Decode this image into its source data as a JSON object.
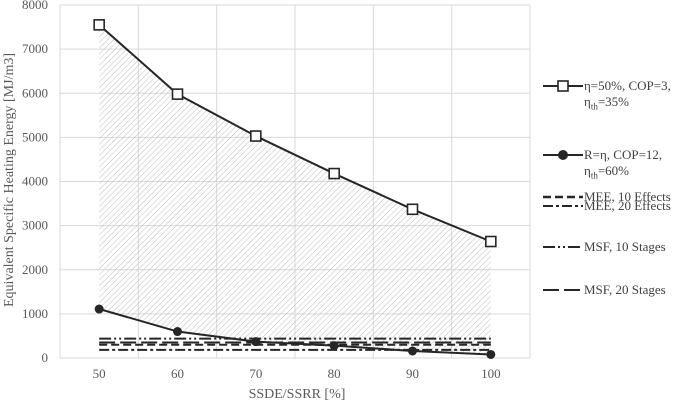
{
  "chart_data": {
    "type": "line",
    "title": "",
    "xlabel": "SSDE/SSRR [%]",
    "ylabel": "Equivalent Specific Heating Energy [MJ/m3]",
    "xlim": [
      45,
      105
    ],
    "ylim": [
      0,
      8000
    ],
    "x_ticks": [
      50,
      60,
      70,
      80,
      90,
      100
    ],
    "y_ticks": [
      0,
      1000,
      2000,
      3000,
      4000,
      5000,
      6000,
      7000,
      8000
    ],
    "grid": "both",
    "legend_position": "right",
    "shaded_region": "between the η=50% and R=η series",
    "x": [
      50,
      60,
      70,
      80,
      90,
      100
    ],
    "series": [
      {
        "name": "η=50%, COP=3, ηth=35%",
        "legend_main": "η=50%, COP=3,",
        "legend_sub": "th",
        "legend_line2_prefix": "η",
        "legend_line2_suffix": "=35%",
        "style": "solid-square",
        "values": [
          7550,
          5980,
          5030,
          4180,
          3370,
          2640
        ]
      },
      {
        "name": "R=η, COP=12, ηth=60%",
        "legend_main": "R=η, COP=12,",
        "legend_sub": "th",
        "legend_line2_prefix": "η",
        "legend_line2_suffix": "=60%",
        "style": "solid-circle",
        "values": [
          1110,
          600,
          370,
          280,
          160,
          80
        ]
      },
      {
        "name": "MEE, 10 Effects",
        "style": "dash",
        "values": [
          300,
          300,
          300,
          300,
          300,
          300
        ]
      },
      {
        "name": "MEE, 20 Effects",
        "style": "dash-dot",
        "values": [
          185,
          185,
          185,
          185,
          185,
          185
        ]
      },
      {
        "name": "MSF, 10 Stages",
        "style": "dash-dot-dot",
        "values": [
          440,
          440,
          440,
          440,
          440,
          440
        ]
      },
      {
        "name": "MSF, 20 Stages",
        "style": "long-dash",
        "values": [
          350,
          350,
          350,
          350,
          350,
          350
        ]
      }
    ],
    "colors": {
      "line": "#262626",
      "grid": "#d9d9d9",
      "shade": "#c8c8c8"
    }
  }
}
